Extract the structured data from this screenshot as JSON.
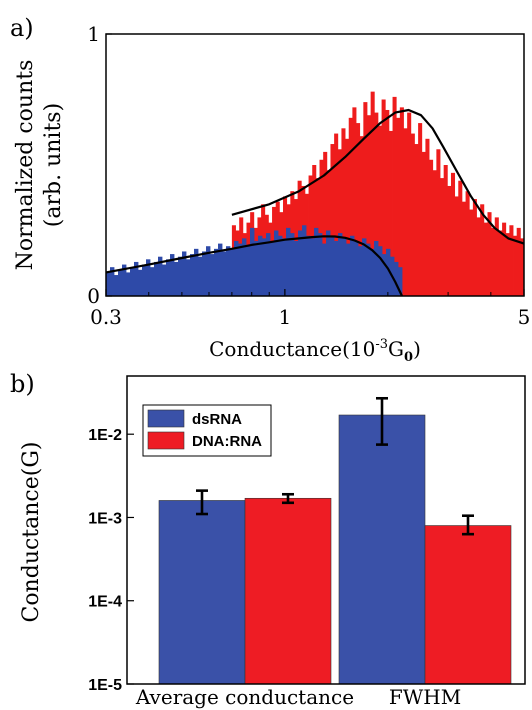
{
  "panel_a": {
    "label": "a)",
    "chart_data": {
      "type": "bar",
      "title": "",
      "xlabel_prefix": "Conductance(10",
      "xlabel_sup": "-3",
      "xlabel_mid": "G",
      "xlabel_sub": "0",
      "xlabel_suffix": ")",
      "ylabel_line1": "Normalized counts",
      "ylabel_line2": "(arb. units)",
      "x_scale": "log",
      "xlim": [
        0.3,
        5
      ],
      "ylim": [
        0,
        1
      ],
      "x_ticks": [
        0.3,
        1,
        5
      ],
      "x_tick_labels": [
        "0.3",
        "1",
        "5"
      ],
      "y_ticks": [
        0,
        1
      ],
      "y_tick_labels": [
        "0",
        "1"
      ],
      "colors": {
        "dsRNA": "#2e4aa8",
        "DNA:RNA": "#ee1c1c",
        "fit": "#000000"
      },
      "series": [
        {
          "name": "",
          "color_key": "DNA:RNA",
          "x_range": [
            0.7,
            5.0
          ],
          "values": [
            0.27,
            0.25,
            0.3,
            0.24,
            0.28,
            0.32,
            0.26,
            0.3,
            0.35,
            0.31,
            0.28,
            0.34,
            0.36,
            0.32,
            0.38,
            0.35,
            0.4,
            0.37,
            0.44,
            0.42,
            0.39,
            0.46,
            0.5,
            0.45,
            0.52,
            0.55,
            0.48,
            0.58,
            0.62,
            0.56,
            0.64,
            0.6,
            0.68,
            0.72,
            0.66,
            0.61,
            0.74,
            0.69,
            0.78,
            0.7,
            0.65,
            0.75,
            0.71,
            0.63,
            0.76,
            0.68,
            0.72,
            0.64,
            0.7,
            0.62,
            0.58,
            0.66,
            0.55,
            0.6,
            0.52,
            0.48,
            0.56,
            0.45,
            0.5,
            0.42,
            0.47,
            0.38,
            0.44,
            0.36,
            0.4,
            0.33,
            0.37,
            0.3,
            0.35,
            0.28,
            0.32,
            0.26,
            0.3,
            0.25,
            0.28,
            0.24,
            0.27,
            0.23,
            0.26,
            0.22
          ]
        },
        {
          "name": "",
          "color_key": "dsRNA",
          "x_range": [
            0.3,
            2.2
          ],
          "values": [
            0.09,
            0.11,
            0.08,
            0.1,
            0.12,
            0.09,
            0.11,
            0.13,
            0.1,
            0.12,
            0.14,
            0.11,
            0.13,
            0.15,
            0.12,
            0.14,
            0.16,
            0.13,
            0.15,
            0.17,
            0.14,
            0.16,
            0.18,
            0.15,
            0.17,
            0.19,
            0.16,
            0.18,
            0.2,
            0.17,
            0.19,
            0.18,
            0.21,
            0.2,
            0.22,
            0.19,
            0.26,
            0.21,
            0.23,
            0.22,
            0.24,
            0.21,
            0.25,
            0.23,
            0.22,
            0.26,
            0.24,
            0.21,
            0.25,
            0.27,
            0.23,
            0.22,
            0.26,
            0.24,
            0.2,
            0.25,
            0.23,
            0.21,
            0.24,
            0.22,
            0.2,
            0.23,
            0.21,
            0.19,
            0.22,
            0.2,
            0.18,
            0.21,
            0.19,
            0.16,
            0.18,
            0.15,
            0.13,
            0.11
          ]
        }
      ],
      "fits": [
        {
          "name": "",
          "x": [
            0.7,
            0.9,
            1.1,
            1.3,
            1.5,
            1.7,
            1.9,
            2.1,
            2.3,
            2.5,
            2.7,
            2.9,
            3.2,
            3.5,
            3.8,
            4.1,
            4.5,
            5.0
          ],
          "y": [
            0.31,
            0.35,
            0.4,
            0.46,
            0.53,
            0.6,
            0.66,
            0.7,
            0.71,
            0.69,
            0.64,
            0.57,
            0.47,
            0.38,
            0.31,
            0.26,
            0.22,
            0.2
          ]
        },
        {
          "name": "",
          "x": [
            0.3,
            0.4,
            0.5,
            0.6,
            0.7,
            0.8,
            0.9,
            1.0,
            1.1,
            1.2,
            1.3,
            1.4,
            1.5,
            1.6,
            1.7,
            1.8,
            1.9,
            2.0,
            2.1,
            2.2
          ],
          "y": [
            0.09,
            0.12,
            0.145,
            0.165,
            0.18,
            0.195,
            0.205,
            0.215,
            0.22,
            0.225,
            0.228,
            0.227,
            0.222,
            0.212,
            0.197,
            0.175,
            0.145,
            0.105,
            0.055,
            0.0
          ]
        }
      ]
    }
  },
  "panel_b": {
    "label": "b)",
    "chart_data": {
      "type": "bar",
      "title": "",
      "xlabel": "",
      "ylabel": "Conductance(G)",
      "y_scale": "log",
      "ylim": [
        1e-05,
        0.05
      ],
      "y_ticks": [
        1e-05,
        0.0001,
        0.001,
        0.01
      ],
      "y_tick_labels": [
        "1E-5",
        "1E-4",
        "1E-3",
        "1E-2"
      ],
      "categories": [
        "Average conductance",
        "FWHM"
      ],
      "series": [
        {
          "name": "dsRNA",
          "color": "#3a51a8",
          "values": [
            0.0016,
            0.017
          ],
          "err_low": [
            0.0011,
            0.0075
          ],
          "err_high": [
            0.0021,
            0.027
          ]
        },
        {
          "name": "DNA:RNA",
          "color": "#ee1c24",
          "values": [
            0.0017,
            0.0008
          ],
          "err_low": [
            0.0015,
            0.00063
          ],
          "err_high": [
            0.0019,
            0.00105
          ]
        }
      ],
      "legend_position": "top-left",
      "grid": false
    }
  }
}
